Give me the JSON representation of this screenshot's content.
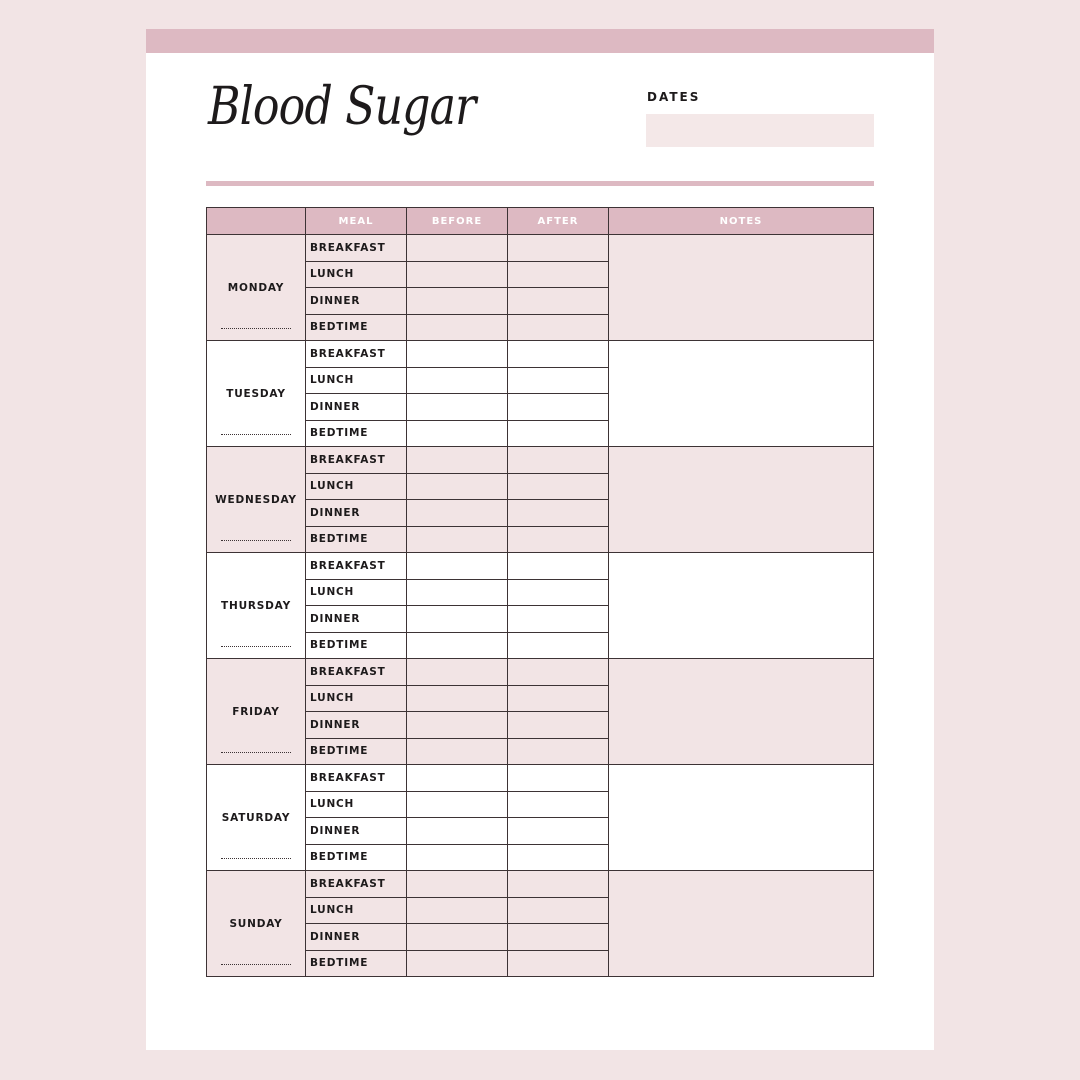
{
  "title": "Blood Sugar",
  "dates": {
    "label": "DATES",
    "value": ""
  },
  "colors": {
    "accent": "#ddb9c2",
    "shade": "#f2e4e5",
    "border": "#3d3335"
  },
  "table": {
    "headers": [
      "",
      "MEAL",
      "BEFORE",
      "AFTER",
      "NOTES"
    ],
    "meals": [
      "BREAKFAST",
      "LUNCH",
      "DINNER",
      "BEDTIME"
    ],
    "days": [
      "MONDAY",
      "TUESDAY",
      "WEDNESDAY",
      "THURSDAY",
      "FRIDAY",
      "SATURDAY",
      "SUNDAY"
    ]
  }
}
